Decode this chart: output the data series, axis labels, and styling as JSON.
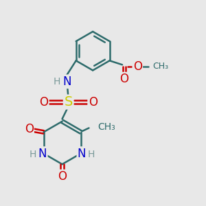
{
  "bg_color": "#e8e8e8",
  "bond_color": "#2d6b6b",
  "bond_width": 1.8,
  "atom_colors": {
    "C": "#2d6b6b",
    "H": "#7a9a9a",
    "N": "#0000cc",
    "O": "#cc0000",
    "S": "#cccc00"
  },
  "font_size": 12,
  "font_size_small": 10
}
